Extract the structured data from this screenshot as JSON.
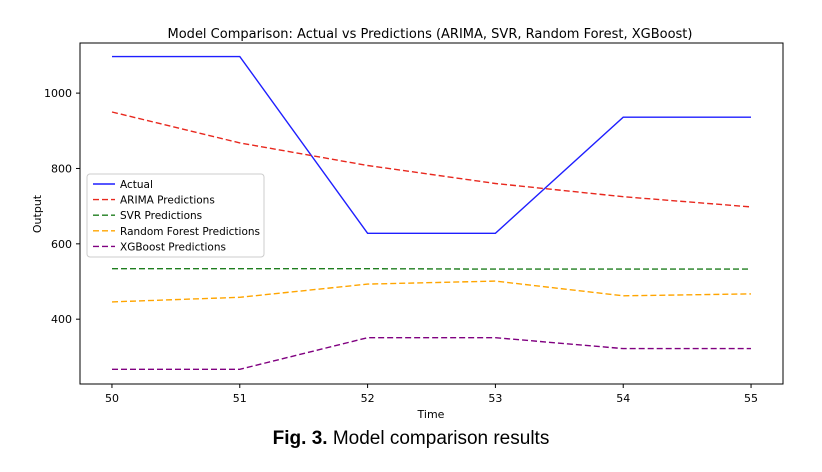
{
  "chart_data": {
    "type": "line",
    "title": "Model Comparison: Actual vs Predictions (ARIMA, SVR, Random Forest, XGBoost)",
    "xlabel": "Time",
    "ylabel": "Output",
    "x": [
      50,
      51,
      52,
      53,
      54,
      55
    ],
    "xlim": [
      49.75,
      55.25
    ],
    "ylim": [
      228,
      1133
    ],
    "xticks": [
      50,
      51,
      52,
      53,
      54,
      55
    ],
    "yticks": [
      400,
      600,
      800,
      1000
    ],
    "grid": false,
    "legend_position": "center-left",
    "series": [
      {
        "name": "Actual",
        "values": [
          1097,
          1097,
          628,
          628,
          936,
          936
        ],
        "color": "#1f1fff",
        "style": "solid"
      },
      {
        "name": "ARIMA Predictions",
        "values": [
          950,
          868,
          808,
          760,
          725,
          698
        ],
        "color": "#e8281e",
        "style": "dashed"
      },
      {
        "name": "SVR Predictions",
        "values": [
          534,
          534,
          534,
          533,
          533,
          533
        ],
        "color": "#1e7d1e",
        "style": "dashed"
      },
      {
        "name": "Random Forest Predictions",
        "values": [
          446,
          458,
          493,
          501,
          462,
          467
        ],
        "color": "#ffa500",
        "style": "dashed"
      },
      {
        "name": "XGBoost Predictions",
        "values": [
          267,
          267,
          351,
          351,
          322,
          322
        ],
        "color": "#800080",
        "style": "dashed"
      }
    ]
  },
  "caption": {
    "label": "Fig. 3.",
    "text": " Model comparison results"
  }
}
